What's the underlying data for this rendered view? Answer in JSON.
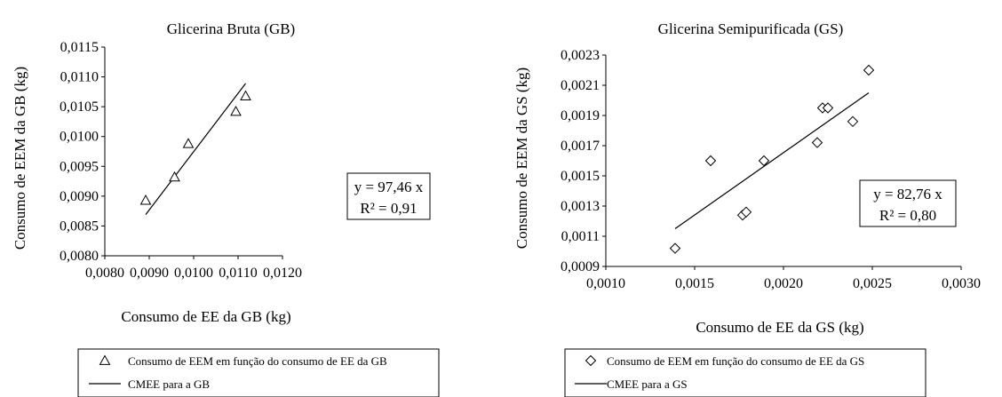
{
  "chart_data": [
    {
      "type": "scatter",
      "title": "Glicerina Bruta (GB)",
      "xlabel": "Consumo de EE da GB (kg)",
      "ylabel": "Consumo de EEM da GB (kg)",
      "xlim": [
        0.008,
        0.012
      ],
      "ylim": [
        0.008,
        0.0115
      ],
      "x_ticks": [
        0.008,
        0.009,
        0.01,
        0.011,
        0.012
      ],
      "y_ticks": [
        0.008,
        0.0085,
        0.009,
        0.0095,
        0.01,
        0.0105,
        0.011,
        0.0115
      ],
      "decimals": 4,
      "marker": "triangle",
      "points": [
        {
          "x": 0.00892,
          "y": 0.00893
        },
        {
          "x": 0.00957,
          "y": 0.00932
        },
        {
          "x": 0.00988,
          "y": 0.00988
        },
        {
          "x": 0.01095,
          "y": 0.01042
        },
        {
          "x": 0.01117,
          "y": 0.01068
        }
      ],
      "trendline": {
        "x": [
          0.00892,
          0.01117
        ],
        "y": [
          0.00869,
          0.01089
        ]
      },
      "equation_lines": [
        "y = 97,46 x",
        "R² = 0,91"
      ],
      "legend": [
        {
          "symbol": "triangle",
          "label": "Consumo de EEM em função do consumo de EE da GB"
        },
        {
          "symbol": "line",
          "label": "CMEE para a GB"
        }
      ],
      "grid": false
    },
    {
      "type": "scatter",
      "title": "Glicerina Semipurificada (GS)",
      "xlabel": "Consumo de EE da GS (kg)",
      "ylabel": "Consumo de EEM da GS (kg)",
      "xlim": [
        0.001,
        0.003
      ],
      "ylim": [
        0.0009,
        0.0023
      ],
      "x_ticks": [
        0.001,
        0.0015,
        0.002,
        0.0025,
        0.003
      ],
      "y_ticks": [
        0.0009,
        0.0011,
        0.0013,
        0.0015,
        0.0017,
        0.0019,
        0.0021,
        0.0023
      ],
      "decimals": 4,
      "marker": "diamond",
      "points": [
        {
          "x": 0.00139,
          "y": 0.00102
        },
        {
          "x": 0.00159,
          "y": 0.0016
        },
        {
          "x": 0.00177,
          "y": 0.00124
        },
        {
          "x": 0.00179,
          "y": 0.00126
        },
        {
          "x": 0.00189,
          "y": 0.0016
        },
        {
          "x": 0.00219,
          "y": 0.00172
        },
        {
          "x": 0.00222,
          "y": 0.00195
        },
        {
          "x": 0.00225,
          "y": 0.00195
        },
        {
          "x": 0.00239,
          "y": 0.00186
        },
        {
          "x": 0.00248,
          "y": 0.0022
        }
      ],
      "trendline": {
        "x": [
          0.00139,
          0.00248
        ],
        "y": [
          0.00115,
          0.00205
        ]
      },
      "equation_lines": [
        "y = 82,76 x",
        "R² = 0,80"
      ],
      "legend": [
        {
          "symbol": "diamond",
          "label": "Consumo de EEM em função do consumo de EE da GS"
        },
        {
          "symbol": "line",
          "label": "CMEE para a GS"
        }
      ],
      "grid": false
    }
  ]
}
